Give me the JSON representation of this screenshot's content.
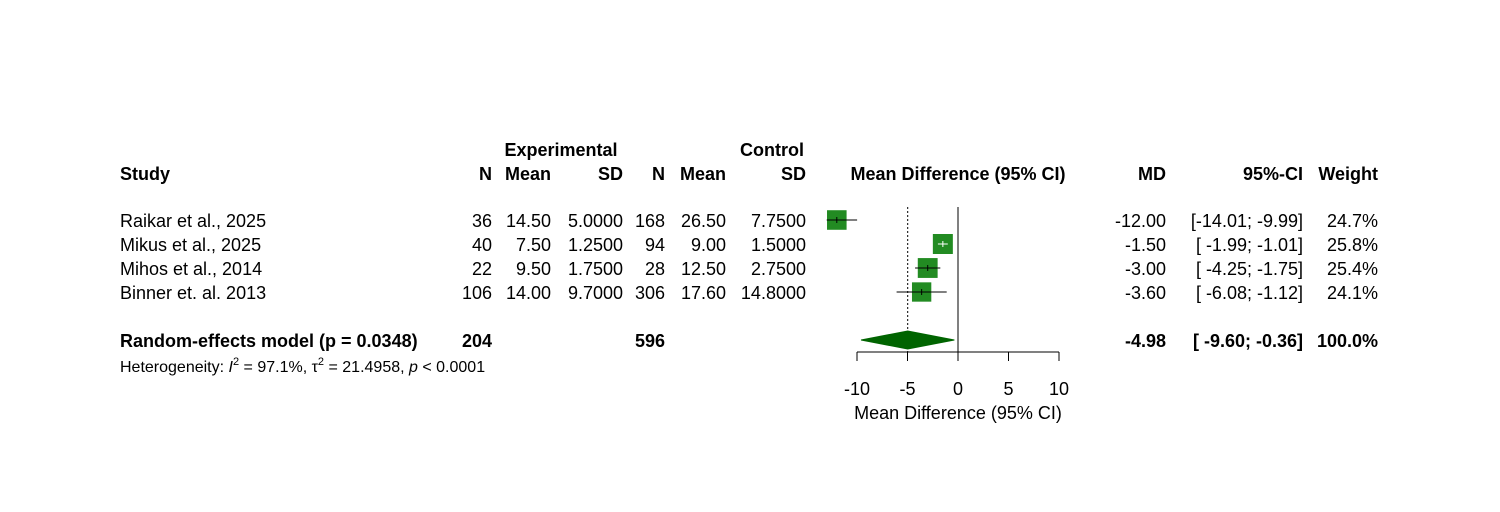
{
  "headers": {
    "group_experimental": "Experimental",
    "group_control": "Control",
    "study": "Study",
    "n": "N",
    "mean": "Mean",
    "sd": "SD",
    "effect": "Mean Difference (95% CI)",
    "md": "MD",
    "ci": "95%-CI",
    "weight": "Weight"
  },
  "rows": [
    {
      "study": "Raikar et al., 2025",
      "n_e": "36",
      "mean_e": "14.50",
      "sd_e": "5.0000",
      "n_c": "168",
      "mean_c": "26.50",
      "sd_c": "7.7500",
      "md_text": "-12.00",
      "ci_text": "[-14.01; -9.99]",
      "weight_text": "24.7%"
    },
    {
      "study": "Mikus et al., 2025",
      "n_e": "40",
      "mean_e": "7.50",
      "sd_e": "1.2500",
      "n_c": "94",
      "mean_c": "9.00",
      "sd_c": "1.5000",
      "md_text": "-1.50",
      "ci_text": "[ -1.99; -1.01]",
      "weight_text": "25.8%"
    },
    {
      "study": "Mihos et al., 2014",
      "n_e": "22",
      "mean_e": "9.50",
      "sd_e": "1.7500",
      "n_c": "28",
      "mean_c": "12.50",
      "sd_c": "2.7500",
      "md_text": "-3.00",
      "ci_text": "[ -4.25; -1.75]",
      "weight_text": "25.4%"
    },
    {
      "study": "Binner et. al. 2013",
      "n_e": "106",
      "mean_e": "14.00",
      "sd_e": "9.7000",
      "n_c": "306",
      "mean_c": "17.60",
      "sd_c": "14.8000",
      "md_text": "-3.60",
      "ci_text": "[ -6.08; -1.12]",
      "weight_text": "24.1%"
    }
  ],
  "pooled": {
    "label": "Random-effects model (p = 0.0348)",
    "n_e": "204",
    "n_c": "596",
    "md_text": "-4.98",
    "ci_text": "[ -9.60; -0.36]",
    "weight_text": "100.0%"
  },
  "heterogeneity": {
    "prefix": "Heterogeneity: ",
    "i_letter": "I",
    "sup": "2",
    "i2_value": " = 97.1%, ",
    "tau_letter": "τ",
    "tau_value": " = 21.4958, ",
    "p_letter": "p",
    "p_value": " < 0.0001"
  },
  "colors": {
    "square": "#228B22",
    "diamond": "#006400",
    "line": "#000000",
    "ci_inside": "#ffffff"
  },
  "chart_data": {
    "type": "forest",
    "xlabel": "Mean Difference (95% CI)",
    "xlim": [
      -10,
      10
    ],
    "ticks": [
      -10,
      -5,
      0,
      5,
      10
    ],
    "null_value": 0,
    "studies": [
      {
        "name": "Raikar et al., 2025",
        "md": -12.0,
        "lower": -14.01,
        "upper": -9.99,
        "weight": 24.7
      },
      {
        "name": "Mikus et al., 2025",
        "md": -1.5,
        "lower": -1.99,
        "upper": -1.01,
        "weight": 25.8
      },
      {
        "name": "Mihos et al., 2014",
        "md": -3.0,
        "lower": -4.25,
        "upper": -1.75,
        "weight": 25.4
      },
      {
        "name": "Binner et. al. 2013",
        "md": -3.6,
        "lower": -6.08,
        "upper": -1.12,
        "weight": 24.1
      }
    ],
    "pooled": {
      "md": -4.98,
      "lower": -9.6,
      "upper": -0.36
    }
  }
}
